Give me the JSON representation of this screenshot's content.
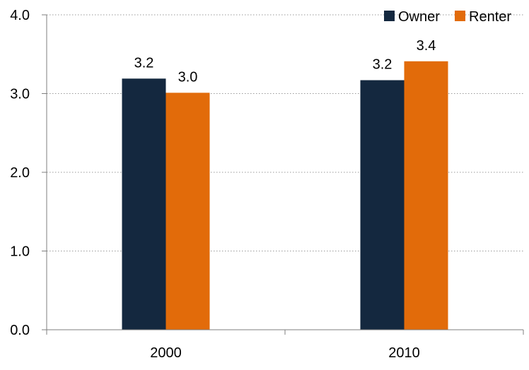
{
  "chart_data": {
    "type": "bar",
    "categories": [
      "2000",
      "2010"
    ],
    "series": [
      {
        "name": "Owner",
        "values": [
          3.2,
          3.2
        ],
        "plot_values": [
          3.19,
          3.17
        ],
        "color": "#14283f"
      },
      {
        "name": "Renter",
        "values": [
          3.0,
          3.4
        ],
        "plot_values": [
          3.01,
          3.41
        ],
        "color": "#e26b0a"
      }
    ],
    "ylim": [
      0,
      4.0
    ],
    "yticks": [
      "0.0",
      "1.0",
      "2.0",
      "3.0",
      "4.0"
    ],
    "grid": "horizontal-dotted",
    "legend_position": "top-right",
    "title": "",
    "xlabel": "",
    "ylabel": ""
  }
}
